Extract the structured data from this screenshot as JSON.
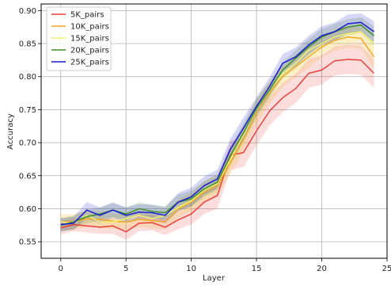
{
  "chart_data": {
    "type": "line",
    "title": "",
    "xlabel": "Layer",
    "ylabel": "Accuracy",
    "xlim": [
      -1.5,
      25
    ],
    "ylim": [
      0.525,
      0.91
    ],
    "xticks": [
      0,
      5,
      10,
      15,
      20,
      25
    ],
    "yticks": [
      0.55,
      0.6,
      0.65,
      0.7,
      0.75,
      0.8,
      0.85,
      0.9
    ],
    "grid": true,
    "legend_position": "top-left",
    "x": [
      0,
      1,
      2,
      3,
      4,
      5,
      6,
      7,
      8,
      9,
      10,
      11,
      12,
      13,
      14,
      15,
      16,
      17,
      18,
      19,
      20,
      21,
      22,
      23,
      24
    ],
    "series": [
      {
        "name": "5K_pairs",
        "color": "#e8413b",
        "values": [
          0.571,
          0.576,
          0.574,
          0.572,
          0.574,
          0.565,
          0.578,
          0.579,
          0.572,
          0.583,
          0.592,
          0.61,
          0.62,
          0.681,
          0.685,
          0.718,
          0.748,
          0.768,
          0.782,
          0.805,
          0.81,
          0.824,
          0.826,
          0.825,
          0.805
        ],
        "spread": [
          0.01,
          0.01,
          0.01,
          0.01,
          0.012,
          0.012,
          0.012,
          0.012,
          0.012,
          0.014,
          0.016,
          0.018,
          0.02,
          0.022,
          0.022,
          0.022,
          0.022,
          0.022,
          0.022,
          0.022,
          0.022,
          0.022,
          0.022,
          0.022,
          0.022
        ]
      },
      {
        "name": "10K_pairs",
        "color": "#f5a623",
        "values": [
          0.58,
          0.58,
          0.585,
          0.584,
          0.581,
          0.58,
          0.584,
          0.582,
          0.58,
          0.6,
          0.61,
          0.625,
          0.635,
          0.67,
          0.705,
          0.745,
          0.775,
          0.8,
          0.815,
          0.83,
          0.845,
          0.855,
          0.86,
          0.858,
          0.83
        ],
        "spread": [
          0.012,
          0.012,
          0.012,
          0.012,
          0.012,
          0.012,
          0.012,
          0.012,
          0.012,
          0.014,
          0.014,
          0.016,
          0.016,
          0.018,
          0.018,
          0.018,
          0.016,
          0.016,
          0.016,
          0.016,
          0.016,
          0.016,
          0.016,
          0.016,
          0.018
        ]
      },
      {
        "name": "15K_pairs",
        "color": "#f4f170",
        "values": [
          0.58,
          0.578,
          0.59,
          0.58,
          0.58,
          0.585,
          0.59,
          0.585,
          0.59,
          0.602,
          0.612,
          0.628,
          0.638,
          0.675,
          0.712,
          0.752,
          0.78,
          0.805,
          0.82,
          0.84,
          0.85,
          0.86,
          0.865,
          0.868,
          0.85
        ],
        "spread": [
          0.01,
          0.01,
          0.01,
          0.01,
          0.01,
          0.01,
          0.01,
          0.01,
          0.01,
          0.012,
          0.012,
          0.014,
          0.014,
          0.016,
          0.016,
          0.016,
          0.014,
          0.014,
          0.014,
          0.014,
          0.014,
          0.014,
          0.014,
          0.014,
          0.016
        ]
      },
      {
        "name": "20K_pairs",
        "color": "#3f8f29",
        "values": [
          0.575,
          0.58,
          0.588,
          0.592,
          0.598,
          0.592,
          0.6,
          0.596,
          0.594,
          0.61,
          0.615,
          0.63,
          0.64,
          0.68,
          0.715,
          0.752,
          0.78,
          0.81,
          0.828,
          0.845,
          0.86,
          0.868,
          0.875,
          0.878,
          0.862
        ],
        "spread": [
          0.01,
          0.01,
          0.01,
          0.01,
          0.01,
          0.01,
          0.01,
          0.01,
          0.01,
          0.012,
          0.012,
          0.012,
          0.012,
          0.014,
          0.014,
          0.014,
          0.012,
          0.012,
          0.012,
          0.012,
          0.012,
          0.012,
          0.012,
          0.012,
          0.014
        ]
      },
      {
        "name": "25K_pairs",
        "color": "#1a1ad4",
        "values": [
          0.576,
          0.578,
          0.598,
          0.59,
          0.598,
          0.59,
          0.595,
          0.594,
          0.59,
          0.61,
          0.618,
          0.635,
          0.645,
          0.69,
          0.722,
          0.755,
          0.785,
          0.82,
          0.83,
          0.848,
          0.862,
          0.868,
          0.88,
          0.882,
          0.868
        ],
        "spread": [
          0.01,
          0.01,
          0.012,
          0.012,
          0.012,
          0.012,
          0.012,
          0.012,
          0.012,
          0.014,
          0.014,
          0.014,
          0.014,
          0.016,
          0.016,
          0.014,
          0.014,
          0.014,
          0.014,
          0.014,
          0.014,
          0.014,
          0.014,
          0.014,
          0.016
        ]
      }
    ]
  }
}
